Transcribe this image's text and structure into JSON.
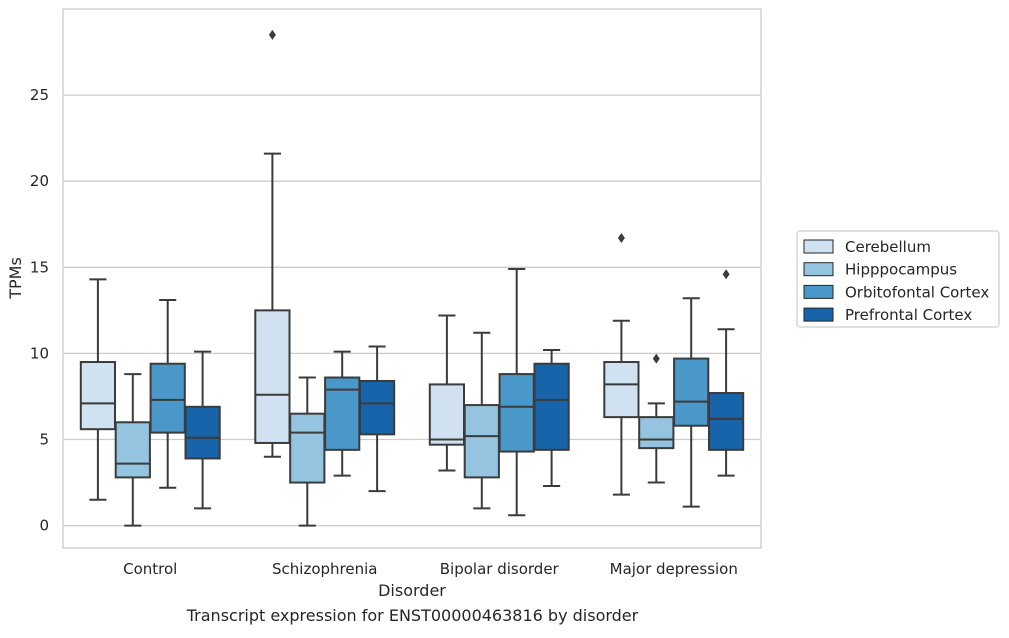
{
  "caption": "Transcript expression for ENST00000463816 by disorder",
  "chart_data": {
    "type": "box",
    "xlabel": "Disorder",
    "ylabel": "TPMs",
    "ylim": [
      -1.3,
      30.0
    ],
    "yticks": [
      0,
      5,
      10,
      15,
      20,
      25
    ],
    "grid": "horizontal",
    "legend_position": "right",
    "categories": [
      "Control",
      "Schizophrenia",
      "Bipolar disorder",
      "Major depression"
    ],
    "series": [
      {
        "name": "Cerebellum",
        "color": "#d0e1f2",
        "boxes": [
          {
            "whisker_low": 1.5,
            "q1": 5.6,
            "median": 7.1,
            "q3": 9.5,
            "whisker_high": 14.3,
            "outliers": []
          },
          {
            "whisker_low": 4.0,
            "q1": 4.8,
            "median": 7.6,
            "q3": 12.5,
            "whisker_high": 21.6,
            "outliers": [
              28.5
            ]
          },
          {
            "whisker_low": 3.2,
            "q1": 4.7,
            "median": 5.0,
            "q3": 8.2,
            "whisker_high": 12.2,
            "outliers": []
          },
          {
            "whisker_low": 1.8,
            "q1": 6.3,
            "median": 8.2,
            "q3": 9.5,
            "whisker_high": 11.9,
            "outliers": [
              16.7
            ]
          }
        ]
      },
      {
        "name": "Hipppocampus",
        "color": "#94c4df",
        "boxes": [
          {
            "whisker_low": 0.0,
            "q1": 2.8,
            "median": 3.6,
            "q3": 6.0,
            "whisker_high": 8.8,
            "outliers": []
          },
          {
            "whisker_low": 0.0,
            "q1": 2.5,
            "median": 5.4,
            "q3": 6.5,
            "whisker_high": 8.6,
            "outliers": []
          },
          {
            "whisker_low": 1.0,
            "q1": 2.8,
            "median": 5.2,
            "q3": 7.0,
            "whisker_high": 11.2,
            "outliers": []
          },
          {
            "whisker_low": 2.5,
            "q1": 4.5,
            "median": 5.0,
            "q3": 6.3,
            "whisker_high": 7.1,
            "outliers": [
              9.7
            ]
          }
        ]
      },
      {
        "name": "Orbitofontal Cortex",
        "color": "#4a98c9",
        "boxes": [
          {
            "whisker_low": 2.2,
            "q1": 5.4,
            "median": 7.3,
            "q3": 9.4,
            "whisker_high": 13.1,
            "outliers": []
          },
          {
            "whisker_low": 2.9,
            "q1": 4.4,
            "median": 7.9,
            "q3": 8.6,
            "whisker_high": 10.1,
            "outliers": []
          },
          {
            "whisker_low": 0.6,
            "q1": 4.3,
            "median": 6.9,
            "q3": 8.8,
            "whisker_high": 14.9,
            "outliers": []
          },
          {
            "whisker_low": 1.1,
            "q1": 5.8,
            "median": 7.2,
            "q3": 9.7,
            "whisker_high": 13.2,
            "outliers": []
          }
        ]
      },
      {
        "name": "Prefrontal Cortex",
        "color": "#1764ab",
        "boxes": [
          {
            "whisker_low": 1.0,
            "q1": 3.9,
            "median": 5.1,
            "q3": 6.9,
            "whisker_high": 10.1,
            "outliers": []
          },
          {
            "whisker_low": 2.0,
            "q1": 5.3,
            "median": 7.1,
            "q3": 8.4,
            "whisker_high": 10.4,
            "outliers": []
          },
          {
            "whisker_low": 2.3,
            "q1": 4.4,
            "median": 7.3,
            "q3": 9.4,
            "whisker_high": 10.2,
            "outliers": []
          },
          {
            "whisker_low": 2.9,
            "q1": 4.4,
            "median": 6.2,
            "q3": 7.7,
            "whisker_high": 11.4,
            "outliers": [
              14.6
            ]
          }
        ]
      }
    ]
  }
}
